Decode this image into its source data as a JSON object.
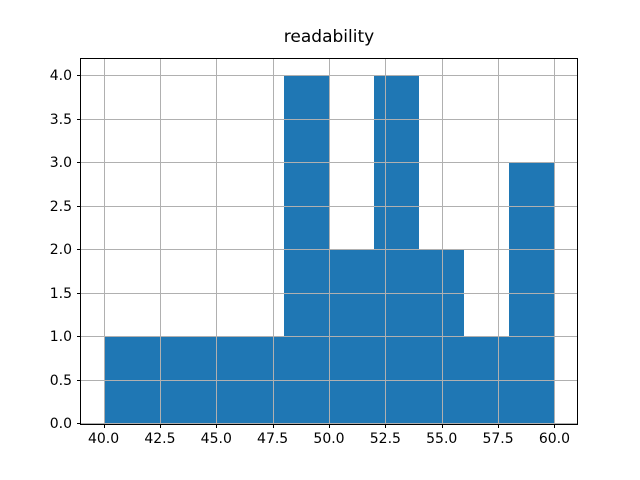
{
  "chart_data": {
    "type": "bar",
    "subtype": "histogram",
    "title": "readability",
    "xlabel": "",
    "ylabel": "",
    "bin_edges": [
      40,
      42,
      44,
      46,
      48,
      50,
      52,
      54,
      56,
      58,
      60
    ],
    "counts": [
      1,
      1,
      1,
      1,
      4,
      2,
      4,
      2,
      1,
      3
    ],
    "xlim": [
      39,
      61
    ],
    "ylim": [
      0,
      4.2
    ],
    "xticks": [
      40.0,
      42.5,
      45.0,
      47.5,
      50.0,
      52.5,
      55.0,
      57.5,
      60.0
    ],
    "xtick_labels": [
      "40.0",
      "42.5",
      "45.0",
      "47.5",
      "50.0",
      "52.5",
      "55.0",
      "57.5",
      "60.0"
    ],
    "yticks": [
      0.0,
      0.5,
      1.0,
      1.5,
      2.0,
      2.5,
      3.0,
      3.5,
      4.0
    ],
    "ytick_labels": [
      "0.0",
      "0.5",
      "1.0",
      "1.5",
      "2.0",
      "2.5",
      "3.0",
      "3.5",
      "4.0"
    ],
    "grid": true,
    "grid_above_bars": true,
    "legend": null,
    "colors": {
      "bar": "#1f77b4",
      "grid": "#b0b0b0",
      "spine": "#000000",
      "background": "#ffffff"
    }
  }
}
